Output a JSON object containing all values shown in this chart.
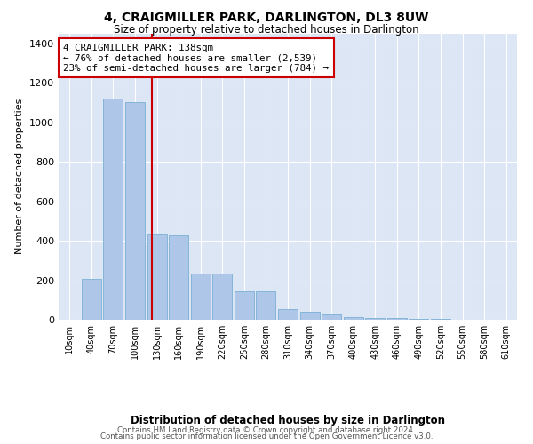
{
  "title": "4, CRAIGMILLER PARK, DARLINGTON, DL3 8UW",
  "subtitle": "Size of property relative to detached houses in Darlington",
  "xlabel": "Distribution of detached houses by size in Darlington",
  "ylabel": "Number of detached properties",
  "bar_labels": [
    "10sqm",
    "40sqm",
    "70sqm",
    "100sqm",
    "130sqm",
    "160sqm",
    "190sqm",
    "220sqm",
    "250sqm",
    "280sqm",
    "310sqm",
    "340sqm",
    "370sqm",
    "400sqm",
    "430sqm",
    "460sqm",
    "490sqm",
    "520sqm",
    "550sqm",
    "580sqm",
    "610sqm"
  ],
  "bar_values": [
    0,
    205,
    1120,
    1100,
    430,
    425,
    235,
    235,
    145,
    145,
    55,
    40,
    25,
    15,
    10,
    10,
    5,
    5,
    0,
    0,
    0
  ],
  "bar_color": "#aec6e8",
  "bar_edgecolor": "#7aafd4",
  "red_line_color": "#cc0000",
  "annotation_text": "4 CRAIGMILLER PARK: 138sqm\n← 76% of detached houses are smaller (2,539)\n23% of semi-detached houses are larger (784) →",
  "annotation_box_color": "#ffffff",
  "annotation_box_edgecolor": "#cc0000",
  "ylim": [
    0,
    1450
  ],
  "yticks": [
    0,
    200,
    400,
    600,
    800,
    1000,
    1200,
    1400
  ],
  "plot_bg_color": "#dce6f5",
  "footer_line1": "Contains HM Land Registry data © Crown copyright and database right 2024.",
  "footer_line2": "Contains public sector information licensed under the Open Government Licence v3.0.",
  "red_line_x": 3.77
}
